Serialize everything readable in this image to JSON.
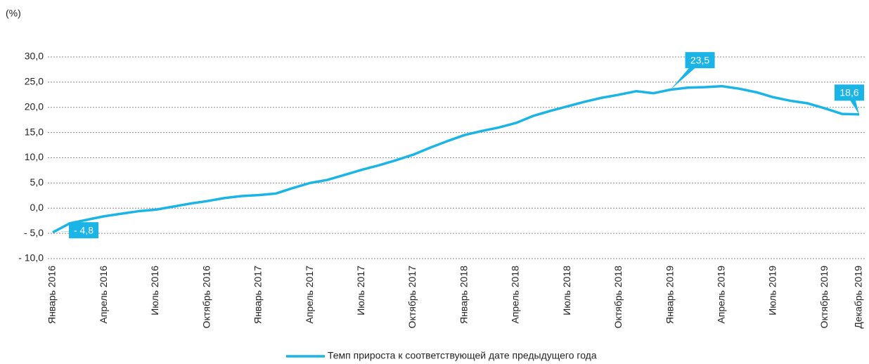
{
  "chart_data": {
    "type": "line",
    "subtitle": "(%)",
    "categories": [
      "Январь 2016",
      null,
      null,
      "Апрель 2016",
      null,
      null,
      "Июль 2016",
      null,
      null,
      "Октябрь 2016",
      null,
      null,
      "Январь 2017",
      null,
      null,
      "Апрель 2017",
      null,
      null,
      "Июль 2017",
      null,
      null,
      "Октябрь 2017",
      null,
      null,
      "Январь 2018",
      null,
      null,
      "Апрель 2018",
      null,
      null,
      "Июль 2018",
      null,
      null,
      "Октябрь 2018",
      null,
      null,
      "Январь 2019",
      null,
      null,
      "Апрель 2019",
      null,
      null,
      "Июль 2019",
      null,
      null,
      "Октябрь 2019",
      null,
      "Декабрь 2019"
    ],
    "series": [
      {
        "name": "Темп прироста к соответствующей дате предыдущего года",
        "color": "#1ab4e6",
        "values": [
          -4.8,
          -3.0,
          -2.3,
          -1.6,
          -1.1,
          -0.6,
          -0.3,
          0.3,
          0.9,
          1.4,
          2.0,
          2.4,
          2.6,
          2.9,
          4.0,
          5.0,
          5.6,
          6.6,
          7.6,
          8.5,
          9.5,
          10.6,
          12.0,
          13.3,
          14.5,
          15.3,
          16.0,
          16.9,
          18.3,
          19.3,
          20.2,
          21.1,
          21.9,
          22.5,
          23.2,
          22.8,
          23.5,
          23.9,
          24.0,
          24.2,
          23.7,
          23.0,
          22.0,
          21.3,
          20.8,
          19.8,
          18.7,
          18.6
        ],
        "value_labels": [
          "- 4,8",
          null,
          null,
          null,
          null,
          null,
          null,
          null,
          null,
          null,
          null,
          null,
          null,
          null,
          null,
          null,
          null,
          null,
          null,
          null,
          null,
          null,
          null,
          null,
          null,
          null,
          null,
          null,
          null,
          null,
          null,
          null,
          null,
          null,
          null,
          null,
          "23,5",
          null,
          null,
          null,
          null,
          null,
          null,
          null,
          null,
          null,
          null,
          "18,6"
        ]
      }
    ],
    "ylim": [
      -10,
      30
    ],
    "yticks": [
      {
        "value": 30,
        "label": "30,0"
      },
      {
        "value": 25,
        "label": "25,0"
      },
      {
        "value": 20,
        "label": "20,0"
      },
      {
        "value": 15,
        "label": "15,0"
      },
      {
        "value": 10,
        "label": "10,0"
      },
      {
        "value": 5,
        "label": "5,0"
      },
      {
        "value": 0,
        "label": "0,0"
      },
      {
        "value": -5,
        "label": "- 5,0"
      },
      {
        "value": -10,
        "label": "- 10,0"
      }
    ],
    "grid": true,
    "legend": "bottom"
  }
}
